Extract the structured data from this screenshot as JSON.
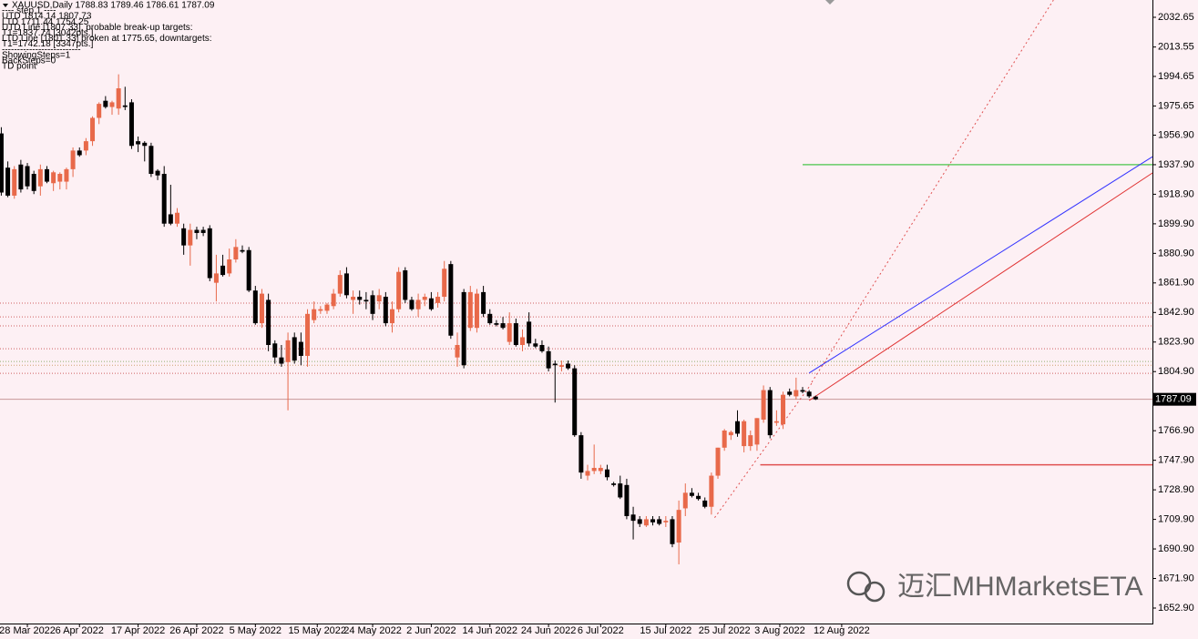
{
  "chart_data": {
    "type": "candlestick",
    "header": "XAUUSD,Daily  1788.83 1789.46 1786.61 1787.09",
    "info_lines": [
      "---- step 1 ----",
      "UTD 1814.14  1807.73",
      "LTD  1711.44  1754.25",
      "UTD  Line [1807.33], probable break-up targets:",
      "T1=1837.74 [3042pts.]",
      "LTD Line [1801.33] broken at 1775.65, downtargets:",
      "T1=1742.18 [3347pts.]",
      "--------------------------",
      "ShowingSteps=1",
      "BackSteps=0",
      "TD point"
    ],
    "up_color": "#e8694a",
    "down_color": "#000000",
    "x": [
      0,
      1,
      2,
      3,
      4,
      5,
      6,
      7,
      8,
      9,
      10,
      11,
      12,
      13,
      14,
      15,
      16,
      17,
      18,
      19,
      20,
      21,
      22,
      23,
      24,
      25,
      26,
      27,
      28,
      29,
      30,
      31,
      32,
      33,
      34,
      35,
      36,
      37,
      38,
      39,
      40,
      41,
      42,
      43,
      44,
      45,
      46,
      47,
      48,
      49,
      50,
      51,
      52,
      53,
      54,
      55,
      56,
      57,
      58,
      59,
      60,
      61,
      62,
      63,
      64,
      65,
      66,
      67,
      68,
      69,
      70,
      71,
      72,
      73,
      74,
      75,
      76,
      77,
      78,
      79,
      80,
      81,
      82,
      83,
      84,
      85,
      86,
      87,
      88,
      89,
      90,
      91,
      92,
      93,
      94,
      95,
      96,
      97,
      98,
      99,
      100,
      101,
      102,
      103,
      104,
      105,
      106,
      107,
      108,
      109,
      110,
      111,
      112,
      113,
      114,
      115,
      116,
      117,
      118,
      119,
      120,
      121,
      122,
      123,
      124,
      125
    ],
    "open": [
      1958,
      1936,
      1918,
      1938,
      1937,
      1932,
      1924,
      1935,
      1926,
      1927,
      1927,
      1935,
      1947,
      1947,
      1953,
      1968,
      1979,
      1975,
      1974,
      1976,
      1978,
      1953,
      1952,
      1950,
      1934,
      1932,
      1906,
      1900,
      1897,
      1886,
      1896,
      1896,
      1897,
      1862,
      1873,
      1868,
      1877,
      1883,
      1883,
      1857,
      1836,
      1851,
      1823,
      1814,
      1811,
      1827,
      1824,
      1815,
      1838,
      1844,
      1844,
      1847,
      1855,
      1868,
      1851,
      1853,
      1851,
      1854,
      1850,
      1853,
      1836,
      1845,
      1870,
      1851,
      1845,
      1851,
      1852,
      1849,
      1853,
      1874,
      1814,
      1856,
      1833,
      1833,
      1856,
      1842,
      1836,
      1836,
      1824,
      1836,
      1822,
      1837,
      1823,
      1822,
      1818,
      1810,
      1808,
      1810,
      1807,
      1764,
      1738,
      1741,
      1741,
      1742,
      1733,
      1733,
      1732,
      1713,
      1710,
      1706,
      1710,
      1710,
      1708,
      1710,
      1695,
      1717,
      1727,
      1725,
      1722,
      1718,
      1738,
      1756,
      1764,
      1773,
      1757,
      1757,
      1758,
      1774,
      1793,
      1772,
      1771,
      1792,
      1789,
      1793,
      1792,
      1788.83
    ],
    "high": [
      1962,
      1940,
      1937,
      1941,
      1939,
      1934,
      1938,
      1937,
      1934,
      1933,
      1936,
      1949,
      1949,
      1955,
      1969,
      1978,
      1982,
      1979,
      1996,
      1988,
      1980,
      1956,
      1953,
      1952,
      1935,
      1937,
      1925,
      1910,
      1900,
      1900,
      1898,
      1898,
      1899,
      1880,
      1880,
      1884,
      1890,
      1886,
      1885,
      1860,
      1858,
      1855,
      1825,
      1822,
      1830,
      1830,
      1830,
      1845,
      1850,
      1847,
      1849,
      1858,
      1870,
      1872,
      1857,
      1857,
      1856,
      1857,
      1858,
      1856,
      1850,
      1872,
      1872,
      1853,
      1855,
      1855,
      1856,
      1856,
      1876,
      1876,
      1830,
      1858,
      1860,
      1858,
      1860,
      1845,
      1838,
      1840,
      1843,
      1839,
      1832,
      1843,
      1826,
      1825,
      1821,
      1812,
      1812,
      1812,
      1809,
      1766,
      1745,
      1758,
      1745,
      1745,
      1734,
      1738,
      1736,
      1718,
      1712,
      1712,
      1712,
      1712,
      1712,
      1712,
      1722,
      1733,
      1730,
      1727,
      1724,
      1740,
      1756,
      1768,
      1767,
      1780,
      1774,
      1767,
      1775,
      1796,
      1795,
      1780,
      1792,
      1794,
      1801,
      1795,
      1793,
      1789.46
    ],
    "low": [
      1918,
      1917,
      1916,
      1920,
      1922,
      1919,
      1918,
      1926,
      1921,
      1922,
      1922,
      1930,
      1943,
      1944,
      1950,
      1964,
      1974,
      1970,
      1970,
      1973,
      1948,
      1946,
      1940,
      1930,
      1928,
      1898,
      1899,
      1898,
      1880,
      1873,
      1890,
      1892,
      1863,
      1850,
      1866,
      1866,
      1875,
      1881,
      1856,
      1835,
      1833,
      1818,
      1810,
      1808,
      1780,
      1810,
      1809,
      1808,
      1836,
      1842,
      1842,
      1845,
      1853,
      1852,
      1842,
      1848,
      1845,
      1838,
      1845,
      1834,
      1830,
      1843,
      1849,
      1844,
      1840,
      1847,
      1844,
      1846,
      1850,
      1826,
      1808,
      1807,
      1831,
      1830,
      1840,
      1835,
      1834,
      1832,
      1822,
      1821,
      1818,
      1821,
      1820,
      1817,
      1805,
      1785,
      1805,
      1806,
      1763,
      1736,
      1735,
      1739,
      1739,
      1735,
      1731,
      1723,
      1710,
      1697,
      1705,
      1705,
      1706,
      1706,
      1705,
      1692,
      1681,
      1712,
      1724,
      1722,
      1717,
      1713,
      1736,
      1754,
      1761,
      1763,
      1753,
      1754,
      1754,
      1772,
      1762,
      1770,
      1768,
      1789,
      1787,
      1791,
      1788,
      1786.61
    ],
    "close": [
      1920,
      1918,
      1935,
      1922,
      1924,
      1921,
      1935,
      1927,
      1933,
      1932,
      1935,
      1947,
      1944,
      1953,
      1968,
      1977,
      1975,
      1978,
      1987,
      1975,
      1950,
      1951,
      1950,
      1932,
      1931,
      1900,
      1900,
      1907,
      1886,
      1896,
      1894,
      1894,
      1865,
      1868,
      1867,
      1877,
      1885,
      1882,
      1857,
      1836,
      1855,
      1822,
      1814,
      1810,
      1825,
      1812,
      1815,
      1842,
      1845,
      1845,
      1848,
      1855,
      1867,
      1854,
      1853,
      1851,
      1850,
      1842,
      1854,
      1836,
      1845,
      1869,
      1851,
      1845,
      1851,
      1853,
      1845,
      1853,
      1871,
      1828,
      1822,
      1809,
      1856,
      1855,
      1842,
      1836,
      1835,
      1833,
      1836,
      1822,
      1827,
      1823,
      1821,
      1818,
      1807,
      1809,
      1809,
      1807,
      1764,
      1740,
      1741,
      1743,
      1743,
      1737,
      1732,
      1724,
      1712,
      1709,
      1707,
      1710,
      1708,
      1707,
      1709,
      1694,
      1716,
      1727,
      1725,
      1723,
      1718,
      1738,
      1756,
      1767,
      1766,
      1765,
      1773,
      1764,
      1775,
      1793,
      1764,
      1773,
      1790,
      1790,
      1793,
      1792,
      1789,
      1787.09
    ],
    "xlim": [
      -0.2,
      176.7
    ],
    "xticks": [
      {
        "value": 4,
        "label": "28 Mar 2022"
      },
      {
        "value": 12,
        "label": "6 Apr 2022"
      },
      {
        "value": 21,
        "label": "17 Apr 2022"
      },
      {
        "value": 30,
        "label": "26 Apr 2022"
      },
      {
        "value": 39,
        "label": "5 May 2022"
      },
      {
        "value": 48.5,
        "label": "15 May 2022"
      },
      {
        "value": 57,
        "label": "24 May 2022"
      },
      {
        "value": 66,
        "label": "2 Jun 2022"
      },
      {
        "value": 75,
        "label": "14 Jun 2022"
      },
      {
        "value": 84,
        "label": "24 Jun 2022"
      },
      {
        "value": 92,
        "label": "6 Jul 2022"
      },
      {
        "value": 102,
        "label": "15 Jul 2022"
      },
      {
        "value": 111,
        "label": "25 Jul 2022"
      },
      {
        "value": 119.5,
        "label": "3 Aug 2022"
      },
      {
        "value": 129,
        "label": "12 Aug 2022"
      }
    ],
    "ylim": [
      1642.95,
      2043.77
    ],
    "yticks": [
      2032.65,
      2013.55,
      1994.65,
      1975.65,
      {
        "value": 1956.9,
        "label": "1956.90"
      },
      {
        "value": 1937.9,
        "label": "1937.90"
      },
      {
        "value": 1918.9,
        "label": "1918.90"
      },
      {
        "value": 1899.9,
        "label": "1899.90"
      },
      {
        "value": 1880.9,
        "label": "1880.90"
      },
      {
        "value": 1861.9,
        "label": "1861.90"
      },
      {
        "value": 1842.9,
        "label": "1842.90"
      },
      {
        "value": 1823.9,
        "label": "1823.90"
      },
      {
        "value": 1804.9,
        "label": "1804.90"
      },
      {
        "value": 1766.9,
        "label": "1766.90"
      },
      {
        "value": 1747.9,
        "label": "1747.90"
      },
      {
        "value": 1728.9,
        "label": "1728.90"
      },
      {
        "value": 1709.9,
        "label": "1709.90"
      },
      {
        "value": 1690.9,
        "label": "1690.90"
      },
      {
        "value": 1671.9,
        "label": "1671.90"
      },
      {
        "value": 1652.9,
        "label": "1652.90"
      }
    ],
    "current_price": 1787.09,
    "levels": [
      {
        "value": 1848.9,
        "color": "#d06060"
      },
      {
        "value": 1840.1,
        "color": "#d06060"
      },
      {
        "value": 1834.3,
        "color": "#d06060"
      },
      {
        "value": 1819.6,
        "color": "#d06060"
      },
      {
        "value": 1811.4,
        "color": "#90b070"
      },
      {
        "value": 1809.0,
        "color": "#d0a070"
      },
      {
        "value": 1803.8,
        "color": "#d06060"
      }
    ],
    "segments": [
      {
        "value": 1937.9,
        "from": 123,
        "color": "#66cc66"
      },
      {
        "value": 1745,
        "from": 116.5,
        "color": "#e05050"
      }
    ],
    "trendlines": [
      {
        "x": [
          124,
          176.7
        ],
        "y": [
          1804,
          1943
        ],
        "color": "#3333ff",
        "dashed": false
      },
      {
        "x": [
          124,
          176.7
        ],
        "y": [
          1786.3,
          1932.6
        ],
        "color": "#e03030",
        "dashed": false
      },
      {
        "x": [
          124.4,
          161.5
        ],
        "y": [
          1798,
          2043.7
        ],
        "color": "#e05050",
        "dashed": true
      },
      {
        "x": [
          109.5,
          124.4
        ],
        "y": [
          1711,
          1797.4
        ],
        "color": "#e05050",
        "dashed": true
      }
    ],
    "watermark": "迈汇MHMarketsETA"
  }
}
